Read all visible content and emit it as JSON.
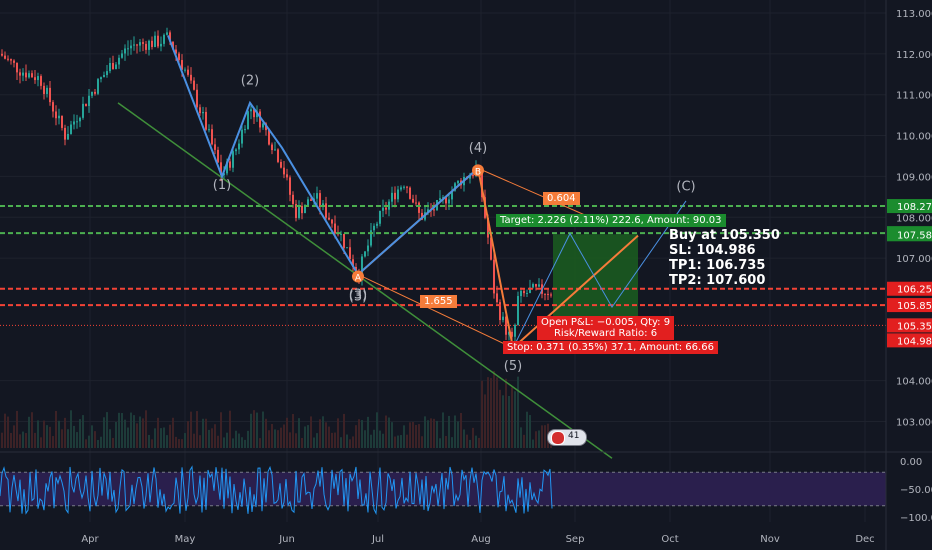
{
  "trade_note": {
    "buy": "Buy at 105.350",
    "sl": "SL: 104.986",
    "tp1": "TP1: 106.735",
    "tp2": "TP2: 107.600"
  },
  "position_tool": {
    "target_label": "Target: 2.226 (2.11%) 222.6, Amount: 90.03",
    "stop_label": "Stop: 0.371 (0.35%) 37.1, Amount: 66.66",
    "pnl_label": "Open P&L: −0.005, Qty: 9",
    "rr_label": "Risk/Reward Ratio: 6",
    "target_color": "#1b8c2e",
    "stop_color": "#e21f1f"
  },
  "fib_labels": {
    "upper": "0.604",
    "lower": "1.655"
  },
  "wave_labels": [
    "(1)",
    "(2)",
    "(3)",
    "(4)",
    "(5)",
    "(C)",
    "A",
    "B",
    "(3)",
    "(5)"
  ],
  "badge": {
    "count": "41"
  },
  "colors": {
    "background": "#131722",
    "bull": "#26a69a",
    "bear": "#ef5350",
    "wave": "#4a90e2",
    "fib_line": "#f57c3a",
    "trendline": "#3f8f3a",
    "green_level": "#4caf50",
    "red_level": "#f44336",
    "osc_line": "#2196f3",
    "osc_band": "#2a1f4d"
  },
  "chart_data": {
    "type": "candlestick",
    "y_axis": {
      "range": [
        102.3,
        113.2
      ],
      "ticks": [
        113.0,
        112.0,
        111.0,
        110.0,
        109.0,
        108.0,
        107.0,
        104.0,
        103.0
      ],
      "tick_labels": [
        "113.000",
        "112.000",
        "111.000",
        "110.000",
        "109.000",
        "108.000",
        "107.000",
        "104.000",
        "103.000"
      ]
    },
    "x_axis": {
      "tick_labels": [
        "Apr",
        "May",
        "Jun",
        "Jul",
        "Aug",
        "Sep",
        "Oct",
        "Nov",
        "Dec"
      ]
    },
    "price_tags": [
      {
        "value": 108.274,
        "label": "108.274",
        "color": "#1b8c2e"
      },
      {
        "value": 107.611,
        "label": "107.611",
        "color": "#1b8c2e"
      },
      {
        "value": 107.583,
        "label": "107.583",
        "color": "#1b8c2e"
      },
      {
        "value": 106.25,
        "label": "106.250",
        "color": "#e21f1f"
      },
      {
        "value": 105.85,
        "label": "105.850",
        "color": "#e21f1f"
      },
      {
        "value": 105.357,
        "label": "105.357",
        "color": "#363a45"
      },
      {
        "value": 105.352,
        "label": "105.352",
        "color": "#e21f1f"
      },
      {
        "value": 104.986,
        "label": "104.986",
        "color": "#e21f1f"
      }
    ],
    "horizontal_levels": [
      {
        "value": 108.274,
        "color": "#4caf50",
        "style": "dashed"
      },
      {
        "value": 107.611,
        "color": "#4caf50",
        "style": "dashed"
      },
      {
        "value": 106.25,
        "color": "#f44336",
        "style": "dashed"
      },
      {
        "value": 105.85,
        "color": "#f44336",
        "style": "dashed"
      },
      {
        "value": 105.352,
        "color": "#f44336",
        "style": "dotted"
      }
    ],
    "oscillator": {
      "range": [
        -100,
        0
      ],
      "ticks": [
        0,
        -50,
        -100
      ],
      "tick_labels": [
        "0.00",
        "−50.00",
        "−100.00"
      ],
      "band": [
        -20,
        -80
      ]
    }
  }
}
